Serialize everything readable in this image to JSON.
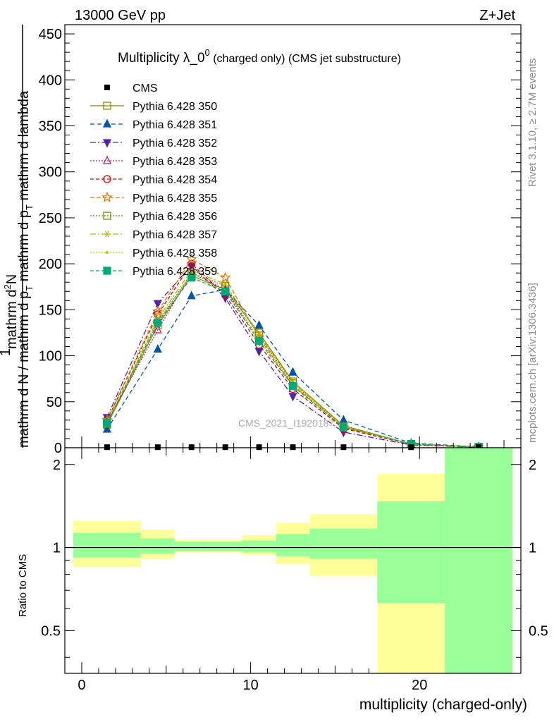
{
  "header": {
    "energy_label": "13000 GeV pp",
    "process_label": "Z+Jet"
  },
  "chart_data": {
    "type": "line",
    "title": "Multiplicity λ_0^0 (charged only) (CMS jet substructure)",
    "title_main": "Multiplicity λ_0",
    "title_sup": "0",
    "title_rest": " (charged only) (CMS jet substructure)",
    "ylabel_parts": {
      "lead": "1",
      "den1": "mathrm d N / mathrm d p",
      "den1_sub": "T",
      "num": "mathrm d",
      "num_sup": "2",
      "num_rest": "N",
      "den2": "mathrm d p",
      "den2_sub": "T",
      "den2_rest": " mathrm d lambda"
    },
    "xlabel": "multiplicity (charged-only)",
    "ratio_ylabel": "Ratio to CMS",
    "side_text_right": "Rivet 3.1.10, ≥ 2.7M events",
    "side_text_mcplots": "mcplots.cern.ch [arXiv:1306.3436]",
    "watermark": "CMS_2021_I1920187",
    "xlim": [
      -1,
      26
    ],
    "ylim": [
      0,
      460
    ],
    "ratio_ylim": [
      0.35,
      2.3
    ],
    "x_ticks": [
      0,
      10,
      20
    ],
    "y_ticks": [
      0,
      50,
      100,
      150,
      200,
      250,
      300,
      350,
      400,
      450
    ],
    "ratio_ticks": [
      0.5,
      1,
      2
    ],
    "x": [
      1.5,
      4.5,
      6.5,
      8.5,
      10.5,
      12.5,
      15.5,
      19.5,
      23.5
    ],
    "bin_edges": [
      -0.5,
      3.5,
      5.5,
      7.5,
      9.5,
      11.5,
      13.5,
      17.5,
      21.5,
      25.5
    ],
    "cms": {
      "name": "CMS",
      "values": [
        0.6,
        0.6,
        0.6,
        0.6,
        0.6,
        0.6,
        0.6,
        0.6,
        0.6
      ],
      "color": "#000000"
    },
    "series": [
      {
        "name": "Pythia 6.428 350",
        "values": [
          25,
          133,
          187,
          172,
          125,
          72,
          24,
          4,
          1
        ],
        "color": "#8b8b00",
        "dash": "",
        "marker": "square-open"
      },
      {
        "name": "Pythia 6.428 351",
        "values": [
          20,
          107,
          165,
          172,
          133,
          82,
          30,
          5,
          1
        ],
        "color": "#0055aa",
        "dash": "6,4",
        "marker": "triangle-up"
      },
      {
        "name": "Pythia 6.428 352",
        "values": [
          33,
          157,
          198,
          163,
          105,
          56,
          17,
          3,
          0.5
        ],
        "color": "#5522aa",
        "dash": "8,3,2,3",
        "marker": "triangle-down"
      },
      {
        "name": "Pythia 6.428 353",
        "values": [
          28,
          128,
          190,
          172,
          118,
          68,
          22,
          4,
          1
        ],
        "color": "#aa2288",
        "dash": "2,2",
        "marker": "triangle-up-open"
      },
      {
        "name": "Pythia 6.428 354",
        "values": [
          30,
          145,
          200,
          166,
          112,
          64,
          21,
          3.5,
          0.8
        ],
        "color": "#dd0000",
        "dash": "5,3",
        "marker": "circle-open"
      },
      {
        "name": "Pythia 6.428 355",
        "values": [
          30,
          148,
          205,
          185,
          120,
          68,
          22,
          4,
          1
        ],
        "color": "#ee7700",
        "dash": "6,3",
        "marker": "star-open"
      },
      {
        "name": "Pythia 6.428 356",
        "values": [
          26,
          136,
          190,
          176,
          122,
          70,
          23,
          4,
          1
        ],
        "color": "#778800",
        "dash": "2,2",
        "marker": "square-open"
      },
      {
        "name": "Pythia 6.428 357",
        "values": [
          27,
          140,
          193,
          178,
          123,
          71,
          23,
          4,
          1
        ],
        "color": "#ccaa00",
        "dash": "8,3,2,3",
        "marker": "asterisk"
      },
      {
        "name": "Pythia 6.428 358",
        "values": [
          28,
          138,
          188,
          170,
          118,
          69,
          22,
          4,
          1
        ],
        "color": "#bbcc00",
        "dash": "2,2",
        "marker": "dot"
      },
      {
        "name": "Pythia 6.428 359",
        "values": [
          27,
          136,
          185,
          170,
          116,
          67,
          22,
          4,
          1
        ],
        "color": "#00aa77",
        "dash": "5,3",
        "marker": "square"
      }
    ],
    "ratio_bands": {
      "yellow_low": [
        0.85,
        0.91,
        0.96,
        0.96,
        0.94,
        0.87,
        0.79,
        0.35,
        0.35
      ],
      "yellow_high": [
        1.25,
        1.16,
        1.07,
        1.07,
        1.11,
        1.23,
        1.32,
        1.85,
        2.3
      ],
      "green_low": [
        0.92,
        0.95,
        0.97,
        0.97,
        0.96,
        0.93,
        0.91,
        0.63,
        0.35
      ],
      "green_high": [
        1.13,
        1.08,
        1.05,
        1.05,
        1.06,
        1.12,
        1.17,
        1.47,
        2.3
      ],
      "yellow_color": "#ffff99",
      "green_color": "#99ff99"
    }
  }
}
